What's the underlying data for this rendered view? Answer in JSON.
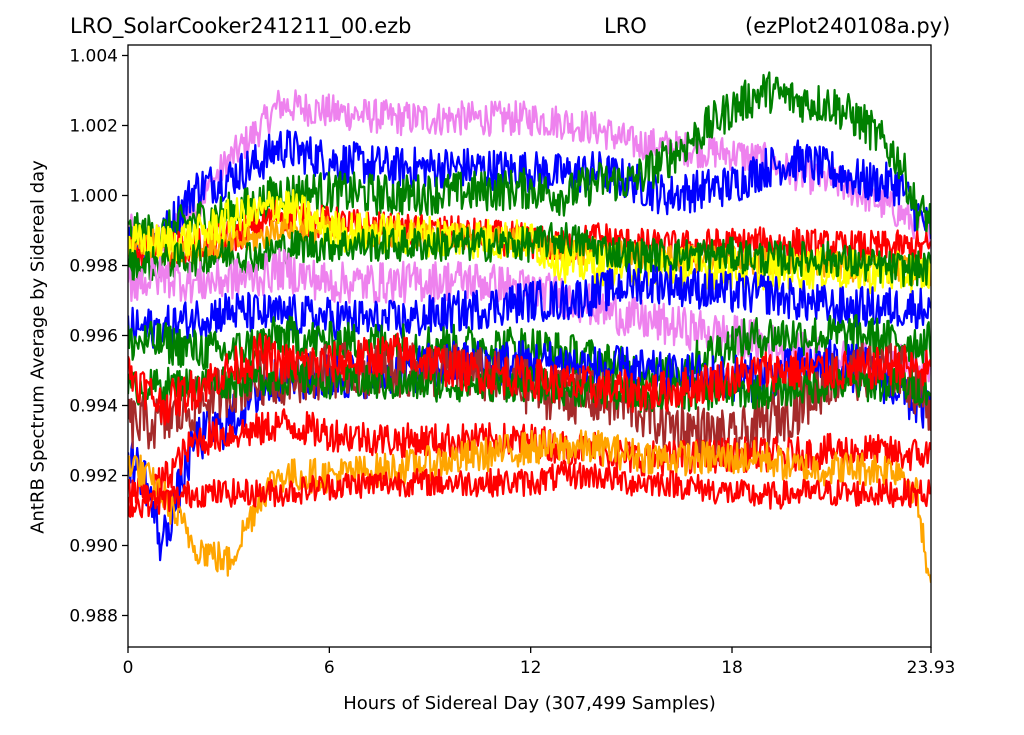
{
  "title": {
    "left": "LRO_SolarCooker241211_00.ezb",
    "center": "LRO",
    "right": "(ezPlot240108a.py)"
  },
  "chart_data": {
    "type": "line",
    "xlabel": "Hours of Sidereal Day  (307,499 Samples)",
    "ylabel": "AntRB Spectrum Average by Sidereal day",
    "xlim": [
      0,
      23.93
    ],
    "ylim": [
      0.9871,
      1.0043
    ],
    "x_ticks": [
      0,
      6,
      12,
      18,
      23.93
    ],
    "x_tick_labels": [
      "0",
      "6",
      "12",
      "18",
      "23.93"
    ],
    "y_ticks": [
      0.988,
      0.99,
      0.992,
      0.994,
      0.996,
      0.998,
      1.0,
      1.002,
      1.004
    ],
    "y_tick_labels": [
      "0.988",
      "0.990",
      "0.992",
      "0.994",
      "0.996",
      "0.998",
      "1.000",
      "1.002",
      "1.004"
    ],
    "grid": false,
    "legend": "none",
    "x": [
      0,
      0.5,
      1,
      2,
      3,
      4,
      4.5,
      6,
      8,
      10,
      12,
      13,
      14,
      15,
      16,
      18,
      19,
      20,
      21,
      22,
      23,
      23.5,
      23.93
    ],
    "series": [
      {
        "color": "#ee82ee",
        "noise": 0.0005,
        "values": [
          0.999,
          0.9988,
          0.9987,
          0.9997,
          1.001,
          1.002,
          1.0026,
          1.0024,
          1.0022,
          1.0022,
          1.0022,
          1.0021,
          1.0019,
          1.0015,
          1.0014,
          1.0012,
          1.001,
          1.0006,
          1.0004,
          1.0,
          0.9995,
          0.9992,
          0.999
        ]
      },
      {
        "color": "#0000ff",
        "noise": 0.0006,
        "values": [
          0.9991,
          0.9988,
          0.9988,
          1.0002,
          1.0005,
          1.001,
          1.0014,
          1.001,
          1.0008,
          1.0008,
          1.0007,
          1.0006,
          1.0007,
          1.0004,
          1.0,
          1.0003,
          1.0008,
          1.001,
          1.0007,
          1.0004,
          1.0003,
          0.9995,
          0.999
        ]
      },
      {
        "color": "#008000",
        "noise": 0.0006,
        "values": [
          0.9989,
          0.9989,
          0.9989,
          0.9993,
          0.9995,
          0.9998,
          1.0001,
          1.0001,
          1.0,
          1.0001,
          1.0002,
          1.0,
          1.0004,
          1.0004,
          1.001,
          1.0025,
          1.003,
          1.0027,
          1.0026,
          1.002,
          1.001,
          0.9996,
          0.9993
        ]
      },
      {
        "color": "#ff0000",
        "noise": 0.0005,
        "values": [
          0.9983,
          0.9983,
          0.9984,
          0.9986,
          0.9988,
          0.9992,
          0.9995,
          0.9992,
          0.999,
          0.9989,
          0.9987,
          0.9985,
          0.9988,
          0.9986,
          0.9985,
          0.9986,
          0.9986,
          0.9986,
          0.9985,
          0.9985,
          0.9985,
          0.9985,
          0.9985
        ]
      },
      {
        "color": "#ffa500",
        "noise": 0.0004,
        "values": [
          0.9985,
          0.9986,
          0.9987,
          0.9984,
          0.9986,
          0.9988,
          0.9991,
          0.999,
          0.9989,
          0.9988,
          0.9987,
          0.9984,
          0.9984,
          0.9983,
          0.9982,
          0.9982,
          0.9981,
          0.998,
          0.998,
          0.9979,
          0.9979,
          0.9978,
          0.9978
        ]
      },
      {
        "color": "#ffff00",
        "noise": 0.0006,
        "values": [
          0.9986,
          0.9986,
          0.9986,
          0.9988,
          0.9993,
          0.9995,
          0.9998,
          0.999,
          0.9989,
          0.9988,
          0.9987,
          0.9981,
          0.998,
          0.998,
          0.998,
          0.9979,
          0.9979,
          0.9979,
          0.9979,
          0.9978,
          0.9978,
          0.9978,
          0.9978
        ]
      },
      {
        "color": "#008000",
        "noise": 0.0005,
        "values": [
          0.998,
          0.998,
          0.9981,
          0.9982,
          0.9983,
          0.9983,
          0.9985,
          0.9986,
          0.9986,
          0.9986,
          0.9986,
          0.9988,
          0.9985,
          0.9983,
          0.9983,
          0.9983,
          0.9982,
          0.9982,
          0.9982,
          0.998,
          0.9979,
          0.9979,
          0.9979
        ]
      },
      {
        "color": "#ee82ee",
        "noise": 0.0006,
        "values": [
          0.9975,
          0.9976,
          0.9977,
          0.9975,
          0.9976,
          0.9977,
          0.9979,
          0.9975,
          0.9975,
          0.9976,
          0.9973,
          0.9971,
          0.9968,
          0.9965,
          0.9963,
          0.996,
          0.9958,
          0.9955,
          0.9953,
          0.9952,
          0.9952,
          0.995,
          0.995
        ]
      },
      {
        "color": "#0000ff",
        "noise": 0.0006,
        "values": [
          0.9962,
          0.9962,
          0.9962,
          0.9965,
          0.9967,
          0.9966,
          0.9966,
          0.9965,
          0.9964,
          0.9967,
          0.997,
          0.997,
          0.9972,
          0.9975,
          0.9975,
          0.9972,
          0.9972,
          0.997,
          0.9968,
          0.9968,
          0.9968,
          0.9968,
          0.9968
        ]
      },
      {
        "color": "#008000",
        "noise": 0.0006,
        "values": [
          0.9958,
          0.9958,
          0.9958,
          0.9956,
          0.9955,
          0.9958,
          0.996,
          0.9958,
          0.9958,
          0.9957,
          0.9957,
          0.9955,
          0.9953,
          0.995,
          0.9948,
          0.9958,
          0.996,
          0.996,
          0.996,
          0.996,
          0.9958,
          0.9958,
          0.9958
        ]
      },
      {
        "color": "#0000ff",
        "noise": 0.0007,
        "values": [
          0.9925,
          0.992,
          0.99,
          0.993,
          0.9935,
          0.9945,
          0.9948,
          0.9948,
          0.995,
          0.9952,
          0.9952,
          0.9952,
          0.995,
          0.995,
          0.9948,
          0.9948,
          0.9948,
          0.995,
          0.9952,
          0.995,
          0.9945,
          0.994,
          0.994
        ]
      },
      {
        "color": "#a52a2a",
        "noise": 0.0008,
        "values": [
          0.9935,
          0.9935,
          0.9935,
          0.994,
          0.9945,
          0.9948,
          0.9948,
          0.995,
          0.995,
          0.995,
          0.9945,
          0.9943,
          0.9942,
          0.994,
          0.9935,
          0.993,
          0.9935,
          0.994,
          0.9948,
          0.995,
          0.995,
          0.9945,
          0.994
        ]
      },
      {
        "color": "#008000",
        "noise": 0.0005,
        "values": [
          0.9945,
          0.9945,
          0.9946,
          0.9946,
          0.9947,
          0.9948,
          0.9948,
          0.9947,
          0.9946,
          0.9946,
          0.9946,
          0.9945,
          0.9944,
          0.9943,
          0.9943,
          0.9944,
          0.9944,
          0.9945,
          0.9946,
          0.9946,
          0.9946,
          0.9945,
          0.9945
        ]
      },
      {
        "color": "#ff0000",
        "noise": 0.0006,
        "values": [
          0.995,
          0.9945,
          0.994,
          0.9945,
          0.995,
          0.9955,
          0.9952,
          0.9952,
          0.9955,
          0.995,
          0.9948,
          0.9946,
          0.9945,
          0.9944,
          0.9944,
          0.9948,
          0.995,
          0.995,
          0.995,
          0.995,
          0.9952,
          0.995,
          0.995
        ]
      },
      {
        "color": "#ff0000",
        "noise": 0.0005,
        "values": [
          0.9915,
          0.9915,
          0.9918,
          0.993,
          0.9932,
          0.9933,
          0.9935,
          0.9932,
          0.993,
          0.993,
          0.993,
          0.9928,
          0.9928,
          0.9925,
          0.9925,
          0.9926,
          0.9926,
          0.9926,
          0.9927,
          0.9927,
          0.9926,
          0.9926,
          0.9926
        ]
      },
      {
        "color": "#ffa500",
        "noise": 0.0005,
        "values": [
          0.9925,
          0.992,
          0.9915,
          0.99,
          0.9895,
          0.9915,
          0.992,
          0.992,
          0.9922,
          0.9925,
          0.9928,
          0.9928,
          0.9928,
          0.9926,
          0.9925,
          0.9925,
          0.9925,
          0.9922,
          0.9922,
          0.9922,
          0.9922,
          0.9915,
          0.9885
        ]
      },
      {
        "color": "#ff0000",
        "noise": 0.0004,
        "values": [
          0.9912,
          0.9912,
          0.9913,
          0.9915,
          0.9915,
          0.9915,
          0.9915,
          0.9917,
          0.9918,
          0.9918,
          0.9918,
          0.992,
          0.992,
          0.9918,
          0.9918,
          0.9915,
          0.9914,
          0.9915,
          0.9915,
          0.9915,
          0.9915,
          0.9915,
          0.9915
        ]
      }
    ]
  }
}
